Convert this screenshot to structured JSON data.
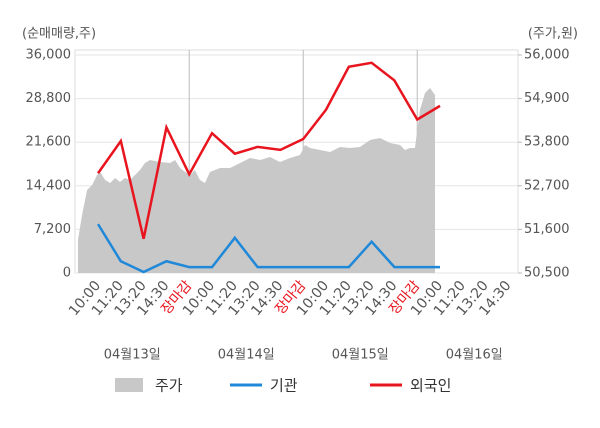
{
  "chart_data": {
    "type": "line",
    "y_label": "(순매매량,주)",
    "y2_label": "(주가,원)",
    "categories": [
      "10:00",
      "11:20",
      "13:20",
      "14:30",
      "장마감",
      "10:00",
      "11:20",
      "13:20",
      "14:30",
      "장마감",
      "10:00",
      "11:20",
      "13:20",
      "14:30",
      "장마감",
      "10:00",
      "11:20",
      "13:20",
      "14:30"
    ],
    "highlight_category": "장마감",
    "dates": [
      "04월13일",
      "04월14일",
      "04월15일",
      "04월16일"
    ],
    "xlim": [
      -1.01,
      18.42
    ],
    "ylim": [
      0,
      36000
    ],
    "yticks": [
      0,
      {
        "value": 7200,
        "label": "7,200"
      },
      {
        "value": 14400,
        "label": "14,400"
      },
      {
        "value": 21600,
        "label": "21,600"
      },
      {
        "value": 28800,
        "label": "28,800"
      },
      {
        "value": 36000,
        "label": "36,000"
      }
    ],
    "y2lim": [
      50500,
      56000
    ],
    "y2ticks": [
      {
        "value": 50500,
        "label": "50,500"
      },
      {
        "value": 51600,
        "label": "51,600"
      },
      {
        "value": 52700,
        "label": "52,700"
      },
      {
        "value": 53800,
        "label": "53,800"
      },
      {
        "value": 54900,
        "label": "54,900"
      },
      {
        "value": 56000,
        "label": "56,000"
      }
    ],
    "series": [
      {
        "name": "주가",
        "kind": "area",
        "axis": "y2",
        "color": "#c8c8c8",
        "x": [
          -0.88,
          -0.7,
          -0.48,
          -0.26,
          -0.04,
          0.09,
          0.31,
          0.53,
          0.75,
          0.96,
          1.18,
          1.4,
          1.62,
          1.84,
          2.06,
          2.28,
          2.72,
          3.16,
          3.38,
          3.6,
          3.82,
          4.04,
          4.25,
          4.47,
          4.69,
          4.91,
          5.13,
          5.35,
          5.79,
          6.23,
          6.67,
          7.11,
          7.54,
          7.98,
          8.42,
          8.86,
          9.08,
          9.3,
          9.74,
          10.18,
          10.61,
          11.05,
          11.49,
          11.93,
          12.37,
          12.81,
          13.25,
          13.46,
          13.68,
          13.9,
          14.12,
          14.34,
          14.56,
          14.78
        ],
        "values": [
          51333,
          51963,
          52594,
          52720,
          52973,
          53048,
          52846,
          52771,
          52897,
          52796,
          52897,
          52846,
          52973,
          53099,
          53275,
          53351,
          53300,
          53275,
          53351,
          53149,
          53048,
          52973,
          53099,
          52846,
          52771,
          53048,
          53099,
          53149,
          53149,
          53275,
          53401,
          53351,
          53427,
          53300,
          53401,
          53477,
          53729,
          53654,
          53603,
          53553,
          53679,
          53654,
          53679,
          53856,
          53906,
          53780,
          53729,
          53603,
          53654,
          53654,
          54613,
          55041,
          55168,
          54991
        ]
      },
      {
        "name": "기관",
        "kind": "line",
        "color": "#1f88d9",
        "x": [
          0,
          1,
          2,
          3,
          4,
          5,
          6,
          7,
          8,
          9,
          10,
          11,
          12,
          13,
          14,
          15
        ],
        "values": [
          8070,
          1940,
          160,
          1940,
          970,
          970,
          5810,
          970,
          970,
          970,
          970,
          970,
          5170,
          970,
          970,
          970
        ]
      },
      {
        "name": "외국인",
        "kind": "line",
        "color": "#e8141e",
        "x": [
          0,
          1,
          2,
          3,
          4,
          5,
          6,
          7,
          8,
          9,
          10,
          11,
          12,
          13,
          14,
          15
        ],
        "values": [
          16470,
          21790,
          5650,
          24050,
          16300,
          23090,
          19700,
          20830,
          20340,
          22120,
          26960,
          34060,
          34710,
          31800,
          25350,
          27600
        ]
      }
    ]
  }
}
